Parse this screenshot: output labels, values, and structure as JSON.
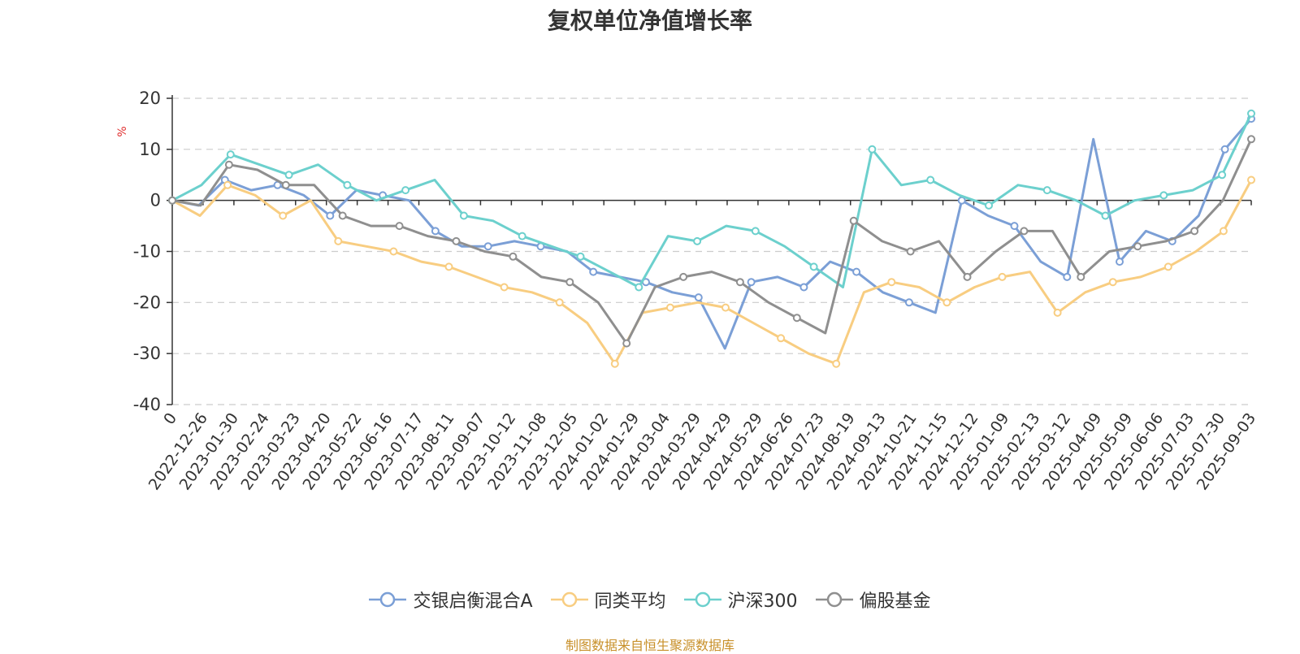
{
  "chart_data": {
    "type": "line",
    "title": "复权单位净值增长率",
    "ylabel": "%",
    "ylim": [
      -40,
      20
    ],
    "yticks": [
      -40,
      -30,
      -20,
      -10,
      0,
      10,
      20
    ],
    "grid": "horizontal-dashed",
    "legend_position": "bottom",
    "source_note": "制图数据来自恒生聚源数据库",
    "xticks": [
      "0",
      "2022-12-26",
      "2023-01-30",
      "2023-02-24",
      "2023-03-23",
      "2023-04-20",
      "2023-05-22",
      "2023-06-16",
      "2023-07-17",
      "2023-08-11",
      "2023-09-07",
      "2023-10-12",
      "2023-11-08",
      "2023-12-05",
      "2024-01-02",
      "2024-01-29",
      "2024-03-04",
      "2024-03-29",
      "2024-04-29",
      "2024-05-29",
      "2024-06-26",
      "2024-07-23",
      "2024-08-19",
      "2024-09-13",
      "2024-10-21",
      "2024-11-15",
      "2024-12-12",
      "2025-01-09",
      "2025-02-13",
      "2025-03-12",
      "2025-04-09",
      "2025-05-09",
      "2025-06-06",
      "2025-07-03",
      "2025-07-30",
      "2025-09-03"
    ],
    "series": [
      {
        "name": "交银启衡混合A",
        "color": "#7b9fd6",
        "values": [
          0,
          -1,
          4,
          2,
          3,
          1,
          -3,
          2,
          1,
          0,
          -6,
          -9,
          -9,
          -8,
          -9,
          -10,
          -14,
          -15,
          -16,
          -18,
          -19,
          -29,
          -16,
          -15,
          -17,
          -12,
          -14,
          -18,
          -20,
          -22,
          0,
          -3,
          -5,
          -12,
          -15,
          12,
          -12,
          -6,
          -8,
          -3,
          10,
          16
        ]
      },
      {
        "name": "同类平均",
        "color": "#f8cd81",
        "values": [
          0,
          -3,
          3,
          1,
          -3,
          0,
          -8,
          -9,
          -10,
          -12,
          -13,
          -15,
          -17,
          -18,
          -20,
          -24,
          -32,
          -22,
          -21,
          -20,
          -21,
          -24,
          -27,
          -30,
          -32,
          -18,
          -16,
          -17,
          -20,
          -17,
          -15,
          -14,
          -22,
          -18,
          -16,
          -15,
          -13,
          -10,
          -6,
          4
        ]
      },
      {
        "name": "沪深300",
        "color": "#6cd0cd",
        "values": [
          0,
          3,
          9,
          7,
          5,
          7,
          3,
          0,
          2,
          4,
          -3,
          -4,
          -7,
          -9,
          -11,
          -14,
          -17,
          -7,
          -8,
          -5,
          -6,
          -9,
          -13,
          -17,
          10,
          3,
          4,
          1,
          -1,
          3,
          2,
          0,
          -3,
          0,
          1,
          2,
          5,
          17
        ]
      },
      {
        "name": "偏股基金",
        "color": "#8f8f8f",
        "values": [
          0,
          -1,
          7,
          6,
          3,
          3,
          -3,
          -5,
          -5,
          -7,
          -8,
          -10,
          -11,
          -15,
          -16,
          -20,
          -28,
          -17,
          -15,
          -14,
          -16,
          -20,
          -23,
          -26,
          -4,
          -8,
          -10,
          -8,
          -15,
          -10,
          -6,
          -6,
          -15,
          -10,
          -9,
          -8,
          -6,
          0,
          12
        ]
      }
    ]
  }
}
